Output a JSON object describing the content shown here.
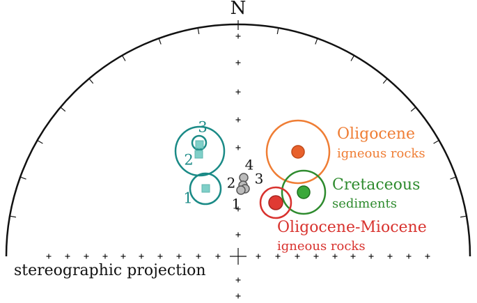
{
  "north": "N",
  "title": "stereographic projection",
  "site_labels_teal": [
    "1",
    "2",
    "3"
  ],
  "site_labels_grey": [
    "1",
    "2",
    "3",
    "4"
  ],
  "groups": [
    {
      "name": "Oligocene",
      "sub": "igneous rocks"
    },
    {
      "name": "Cretaceous",
      "sub": "sediments"
    },
    {
      "name": "Oligocene-Miocene",
      "sub": "igneous rocks"
    }
  ]
}
